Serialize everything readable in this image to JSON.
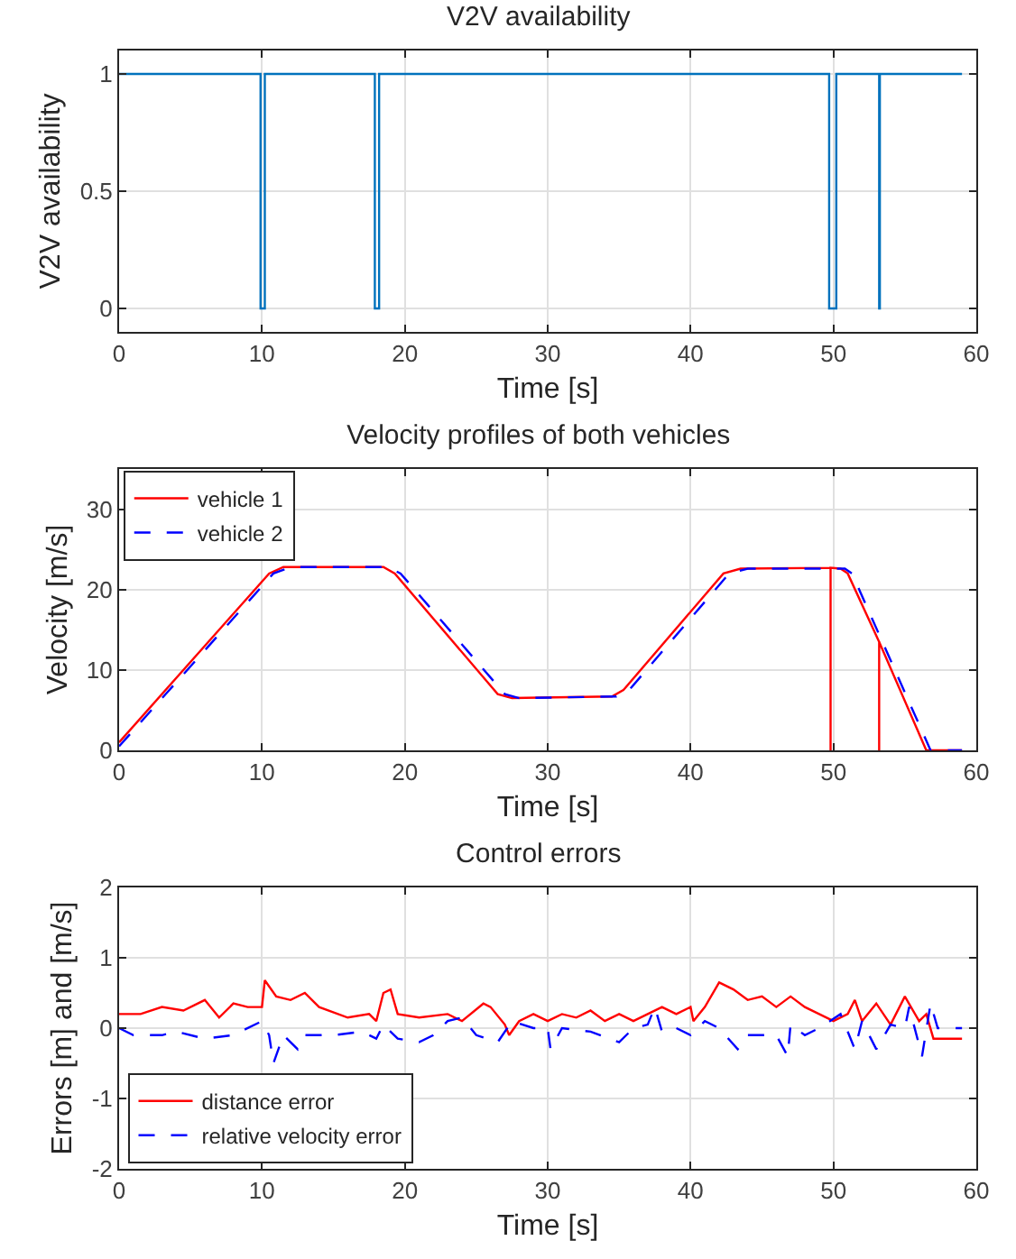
{
  "chart_data": [
    {
      "type": "line",
      "title": "V2V availability",
      "xlabel": "Time [s]",
      "ylabel": "V2V availability",
      "xlim": [
        0,
        60
      ],
      "xticks": [
        0,
        10,
        20,
        30,
        40,
        50,
        60
      ],
      "ylim": [
        -0.1,
        1.1
      ],
      "yticks": [
        0,
        0.5,
        1
      ],
      "grid": true,
      "legend": false,
      "series": [
        {
          "color": "#0072bd",
          "line_style": "solid",
          "x": [
            0,
            9.9,
            9.9,
            10.2,
            10.2,
            17.9,
            17.9,
            18.2,
            18.2,
            49.7,
            49.7,
            50.2,
            50.2,
            53.2,
            53.2,
            53.25,
            53.25,
            59
          ],
          "values": [
            1,
            1,
            0,
            0,
            1,
            1,
            0,
            0,
            1,
            1,
            0,
            0,
            1,
            1,
            0,
            0,
            1,
            1
          ]
        }
      ]
    },
    {
      "type": "line",
      "title": "Velocity profiles of both vehicles",
      "xlabel": "Time [s]",
      "ylabel": "Velocity [m/s]",
      "xlim": [
        0,
        60
      ],
      "xticks": [
        0,
        10,
        20,
        30,
        40,
        50,
        60
      ],
      "ylim": [
        0,
        35
      ],
      "yticks": [
        0,
        10,
        20,
        30
      ],
      "grid": true,
      "legend": "top left",
      "series": [
        {
          "name": "vehicle 1",
          "color": "#ff0000",
          "line_style": "solid",
          "x": [
            0,
            10.5,
            11.5,
            18.5,
            19.3,
            26.5,
            27.5,
            34.5,
            35.3,
            42.3,
            43.5,
            49.8,
            49.8,
            49.8,
            50.5,
            51,
            53.2,
            53.2,
            53.2,
            56.5,
            59
          ],
          "values": [
            1,
            22,
            22.8,
            22.8,
            22,
            7,
            6.5,
            6.7,
            7.5,
            22,
            22.6,
            22.7,
            0,
            22.7,
            22.6,
            22,
            13.5,
            0,
            13.5,
            0,
            0
          ]
        },
        {
          "name": "vehicle 2",
          "color": "#0000ff",
          "line_style": "dashed",
          "x": [
            0,
            10.8,
            12,
            18.8,
            19.7,
            27,
            28,
            34.8,
            35.7,
            42.7,
            44,
            50.8,
            51.3,
            56.8,
            59
          ],
          "values": [
            0.5,
            22,
            22.8,
            22.8,
            22,
            7,
            6.5,
            6.7,
            7.5,
            22,
            22.6,
            22.6,
            22,
            0,
            0
          ]
        }
      ]
    },
    {
      "type": "line",
      "title": "Control errors",
      "xlabel": "Time [s]",
      "ylabel": "Errors [m] and [m/s]",
      "xlim": [
        0,
        60
      ],
      "xticks": [
        0,
        10,
        20,
        30,
        40,
        50,
        60
      ],
      "ylim": [
        -2,
        2
      ],
      "yticks": [
        -2,
        -1,
        0,
        1,
        2
      ],
      "grid": true,
      "legend": "bottom left",
      "series": [
        {
          "name": "distance error",
          "color": "#ff0000",
          "line_style": "solid",
          "x": [
            0,
            1.5,
            3,
            4.5,
            6,
            7,
            8,
            9,
            10,
            10.2,
            11,
            12,
            13,
            14,
            16,
            17.5,
            18,
            18.5,
            19,
            19.5,
            21,
            23,
            24,
            25.5,
            26,
            27,
            27.3,
            28,
            29,
            30,
            31,
            32,
            33,
            34,
            35,
            36,
            37,
            38,
            39,
            40,
            40.2,
            41,
            42,
            43,
            44,
            45,
            46,
            47,
            48,
            49,
            50,
            51,
            51.5,
            52,
            53,
            54,
            55,
            56,
            56.5,
            57,
            59
          ],
          "values": [
            0.2,
            0.2,
            0.3,
            0.25,
            0.4,
            0.15,
            0.35,
            0.3,
            0.3,
            0.68,
            0.45,
            0.4,
            0.5,
            0.3,
            0.15,
            0.2,
            0.1,
            0.5,
            0.55,
            0.2,
            0.15,
            0.2,
            0.1,
            0.35,
            0.3,
            0.05,
            -0.1,
            0.1,
            0.2,
            0.1,
            0.2,
            0.15,
            0.25,
            0.1,
            0.2,
            0.1,
            0.2,
            0.3,
            0.2,
            0.3,
            0.1,
            0.3,
            0.65,
            0.55,
            0.4,
            0.45,
            0.3,
            0.45,
            0.3,
            0.2,
            0.1,
            0.2,
            0.4,
            0.1,
            0.35,
            0.05,
            0.45,
            0.1,
            0.2,
            -0.15,
            -0.15
          ]
        },
        {
          "name": "relative velocity error",
          "color": "#0000ff",
          "line_style": "dashed",
          "x": [
            0,
            1,
            3,
            4,
            6,
            8,
            10,
            10.5,
            10.8,
            11.5,
            12.5,
            13,
            15,
            17,
            18,
            18.5,
            19.5,
            21,
            22,
            23,
            24,
            25,
            26.5,
            27.5,
            29,
            30,
            30.2,
            31,
            33,
            35,
            36,
            37,
            37.5,
            38,
            39,
            40,
            41,
            42,
            43.3,
            44,
            46,
            46.8,
            47,
            48,
            49,
            50.5,
            51.5,
            52,
            53,
            54,
            55,
            55.3,
            56.2,
            56.8,
            57.3,
            59
          ],
          "values": [
            0,
            -0.1,
            -0.1,
            -0.05,
            -0.15,
            -0.1,
            0.1,
            -0.1,
            -0.5,
            -0.1,
            -0.3,
            -0.1,
            -0.1,
            -0.05,
            -0.15,
            0.05,
            -0.15,
            -0.2,
            -0.1,
            0.1,
            0.15,
            -0.1,
            -0.2,
            0.1,
            0,
            0,
            -0.3,
            0,
            -0.05,
            -0.2,
            0,
            0.05,
            0.3,
            -0.05,
            0,
            -0.1,
            0.1,
            0,
            -0.3,
            -0.1,
            -0.1,
            -0.4,
            0.05,
            -0.1,
            0,
            0.2,
            -0.3,
            0.1,
            -0.3,
            0.05,
            0,
            0.3,
            -0.4,
            0.35,
            0,
            0
          ]
        }
      ]
    }
  ]
}
